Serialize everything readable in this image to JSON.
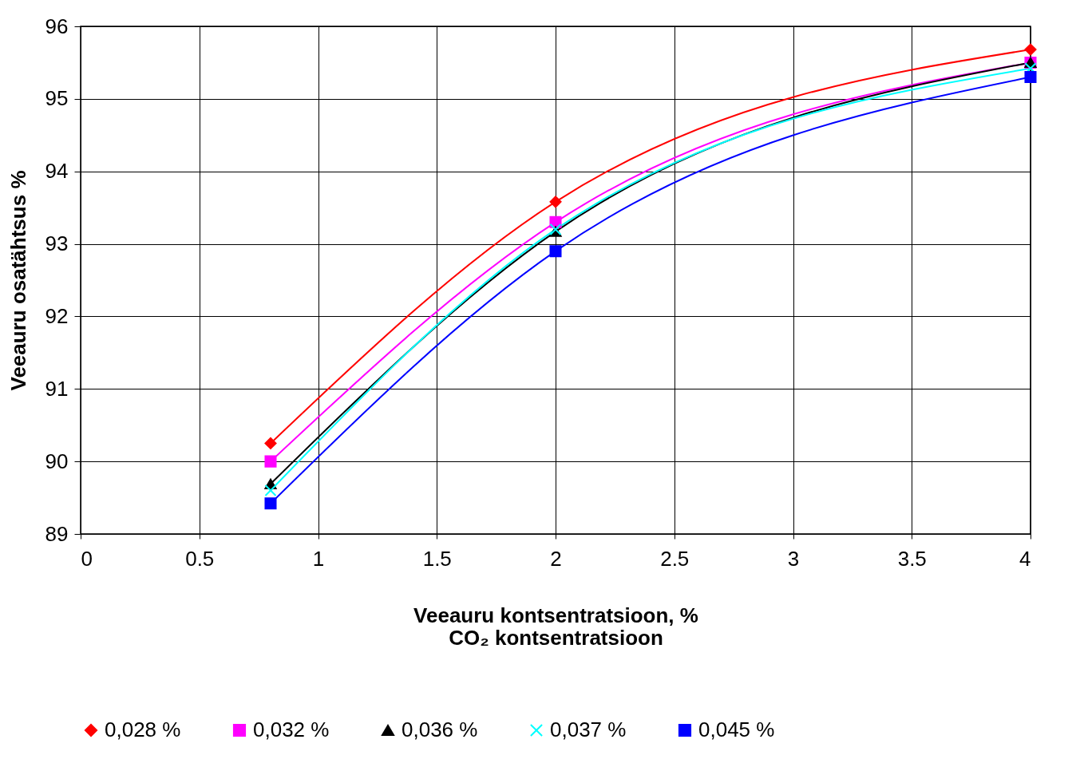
{
  "chart_data": {
    "type": "line",
    "xlabel": "Veeauru kontsentratsioon, %\nCO₂ kontsentratsioon",
    "ylabel": "Veeauru osatähtsus %",
    "x": [
      0.8,
      2,
      4
    ],
    "series": [
      {
        "name": "0,028 %",
        "color": "#ff0000",
        "marker": "diamond",
        "values": [
          90.25,
          93.58,
          95.68
        ]
      },
      {
        "name": "0,032 %",
        "color": "#ff00ff",
        "marker": "square",
        "values": [
          90.0,
          93.3,
          95.5
        ]
      },
      {
        "name": "0,036 %",
        "color": "#000000",
        "marker": "triangle",
        "values": [
          89.69,
          93.17,
          95.5
        ]
      },
      {
        "name": "0,037 %",
        "color": "#00ffff",
        "marker": "cross",
        "values": [
          89.6,
          93.2,
          95.42
        ]
      },
      {
        "name": "0,045 %",
        "color": "#0000ff",
        "marker": "square",
        "values": [
          89.42,
          92.9,
          95.3
        ]
      }
    ],
    "xlim": [
      0,
      4
    ],
    "xticks": [
      0,
      0.5,
      1,
      1.5,
      2,
      2.5,
      3,
      3.5,
      4
    ],
    "ylim": [
      89,
      96
    ],
    "yticks": [
      89,
      90,
      91,
      92,
      93,
      94,
      95,
      96
    ],
    "grid": true,
    "legend": "bottom",
    "line_style": "solid"
  }
}
